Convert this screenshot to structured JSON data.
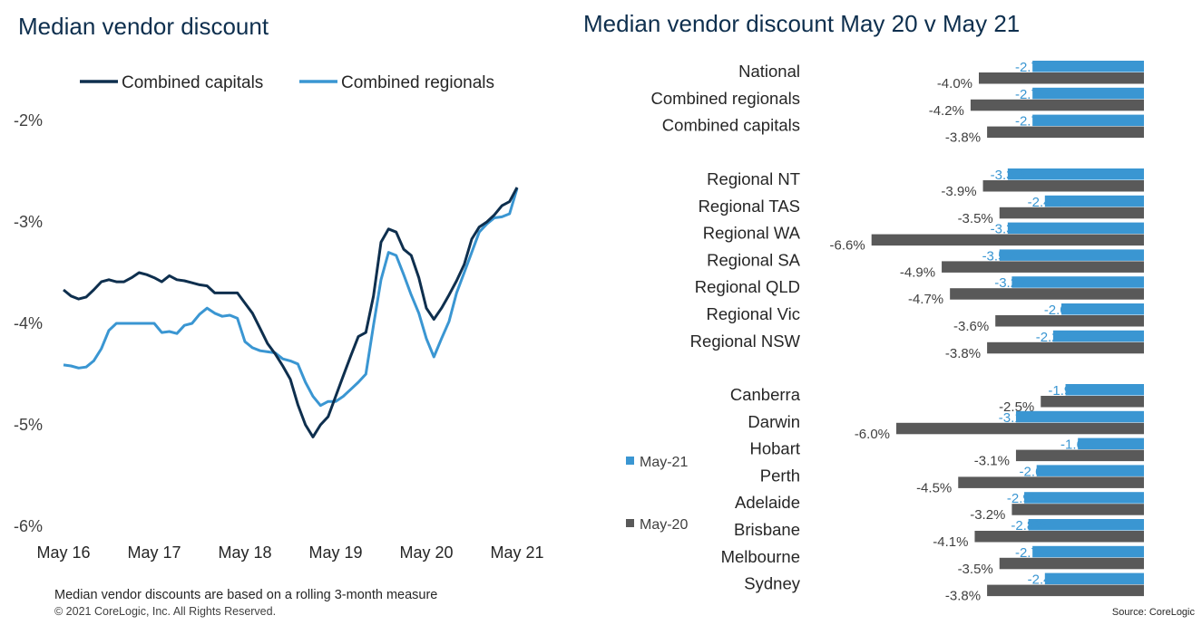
{
  "colors": {
    "capitals": "#0e2f4e",
    "regionals": "#3a96d2",
    "may21": "#3a96d2",
    "may20": "#595959",
    "title": "#0e2f4e"
  },
  "footer": {
    "note": "Median vendor discounts are based on a rolling 3-month measure",
    "copyright": "© 2021 CoreLogic,  Inc. All Rights Reserved.",
    "source": "Source: CoreLogic"
  },
  "chart_data": [
    {
      "type": "line",
      "title": "Median vendor discount",
      "xlabel": "",
      "ylabel": "",
      "ylim": [
        -6,
        -2
      ],
      "y_ticks": [
        -2,
        -3,
        -4,
        -5,
        -6
      ],
      "y_tick_labels": [
        "-2%",
        "-3%",
        "-4%",
        "-5%",
        "-6%"
      ],
      "x_tick_labels": [
        "May 16",
        "May 17",
        "May 18",
        "May 19",
        "May 20",
        "May 21"
      ],
      "x_range": [
        0,
        60
      ],
      "grid": false,
      "legend_placement": "top",
      "series": [
        {
          "name": "Combined capitals",
          "values": [
            -3.67,
            -3.73,
            -3.76,
            -3.74,
            -3.67,
            -3.59,
            -3.57,
            -3.59,
            -3.59,
            -3.55,
            -3.5,
            -3.52,
            -3.55,
            -3.59,
            -3.53,
            -3.57,
            -3.58,
            -3.6,
            -3.62,
            -3.63,
            -3.7,
            -3.7,
            -3.7,
            -3.7,
            -3.8,
            -3.9,
            -4.05,
            -4.2,
            -4.3,
            -4.42,
            -4.55,
            -4.8,
            -5.0,
            -5.12,
            -5.0,
            -4.92,
            -4.72,
            -4.52,
            -4.32,
            -4.13,
            -4.09,
            -3.73,
            -3.2,
            -3.07,
            -3.1,
            -3.27,
            -3.33,
            -3.55,
            -3.85,
            -3.96,
            -3.85,
            -3.72,
            -3.58,
            -3.42,
            -3.17,
            -3.05,
            -3.0,
            -2.93,
            -2.84,
            -2.8,
            -2.66
          ]
        },
        {
          "name": "Combined regionals",
          "values": [
            -4.41,
            -4.42,
            -4.44,
            -4.43,
            -4.37,
            -4.25,
            -4.07,
            -4.0,
            -4.0,
            -4.0,
            -4.0,
            -4.0,
            -4.0,
            -4.09,
            -4.08,
            -4.1,
            -4.02,
            -4.0,
            -3.91,
            -3.85,
            -3.9,
            -3.93,
            -3.92,
            -3.95,
            -4.18,
            -4.24,
            -4.27,
            -4.28,
            -4.29,
            -4.35,
            -4.37,
            -4.4,
            -4.58,
            -4.72,
            -4.81,
            -4.77,
            -4.77,
            -4.72,
            -4.65,
            -4.58,
            -4.5,
            -4.02,
            -3.57,
            -3.3,
            -3.33,
            -3.52,
            -3.72,
            -3.9,
            -4.15,
            -4.33,
            -4.15,
            -3.98,
            -3.7,
            -3.5,
            -3.3,
            -3.1,
            -3.02,
            -2.96,
            -2.95,
            -2.92,
            -2.67
          ]
        }
      ]
    },
    {
      "type": "bar",
      "orientation": "horizontal",
      "title": "Median vendor discount May 20 v May 21",
      "legend_placement": "left",
      "series_names": [
        "May-21",
        "May-20"
      ],
      "groups": [
        {
          "categories": [
            "National",
            "Combined regionals",
            "Combined capitals"
          ],
          "may21": [
            -2.7,
            -2.7,
            -2.7
          ],
          "may20": [
            -4.0,
            -4.2,
            -3.8
          ]
        },
        {
          "categories": [
            "Regional NT",
            "Regional TAS",
            "Regional WA",
            "Regional SA",
            "Regional QLD",
            "Regional Vic",
            "Regional NSW"
          ],
          "may21": [
            -3.3,
            -2.4,
            -3.3,
            -3.5,
            -3.2,
            -2.0,
            -2.2
          ],
          "may20": [
            -3.9,
            -3.5,
            -6.6,
            -4.9,
            -4.7,
            -3.6,
            -3.8
          ]
        },
        {
          "categories": [
            "Canberra",
            "Darwin",
            "Hobart",
            "Perth",
            "Adelaide",
            "Brisbane",
            "Melbourne",
            "Sydney"
          ],
          "may21": [
            -1.9,
            -3.1,
            -1.6,
            -2.6,
            -2.9,
            -2.8,
            -2.7,
            -2.4
          ],
          "may20": [
            -2.5,
            -6.0,
            -3.1,
            -4.5,
            -3.2,
            -4.1,
            -3.5,
            -3.8
          ]
        }
      ]
    }
  ]
}
